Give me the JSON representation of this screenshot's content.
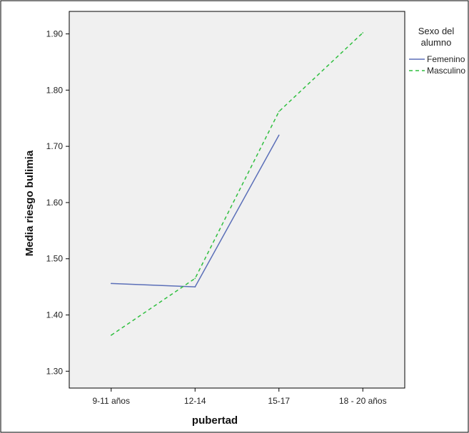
{
  "chart_data": {
    "type": "line",
    "xlabel": "pubertad",
    "ylabel": "Media riesgo bulimia",
    "categories": [
      "9-11 años",
      "12-14",
      "15-17",
      "18 - 20 años"
    ],
    "ylim": [
      1.27,
      1.94
    ],
    "yticks": [
      "1.30",
      "1.40",
      "1.50",
      "1.60",
      "1.70",
      "1.80",
      "1.90"
    ],
    "grid": false,
    "legend_title_lines": [
      "Sexo del",
      "alumno"
    ],
    "legend_position": "top-right-outside",
    "series": [
      {
        "name": "Femenino",
        "values": [
          1.456,
          1.45,
          1.72,
          null
        ],
        "color": "#5b6fb8",
        "style": "solid"
      },
      {
        "name": "Masculino",
        "values": [
          1.364,
          1.465,
          1.762,
          1.902
        ],
        "color": "#2fbf3f",
        "style": "dashed"
      }
    ]
  }
}
